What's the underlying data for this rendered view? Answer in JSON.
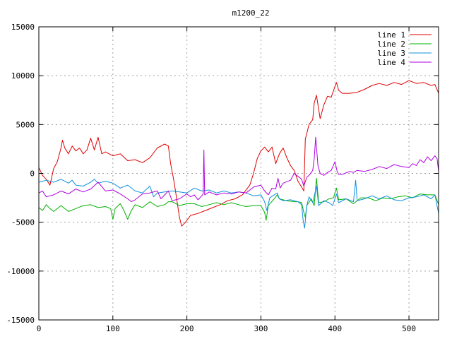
{
  "chart_data": {
    "type": "line",
    "title": "m1200_22",
    "xlabel": "",
    "ylabel": "",
    "xlim": [
      0,
      540
    ],
    "ylim": [
      -15000,
      15000
    ],
    "xticks": [
      0,
      100,
      200,
      300,
      400,
      500
    ],
    "yticks": [
      -15000,
      -10000,
      -5000,
      0,
      5000,
      10000,
      15000
    ],
    "grid": true,
    "legend_position": "top-right",
    "series": [
      {
        "name": "line 1",
        "color": "#e00000",
        "points": [
          [
            0,
            600
          ],
          [
            5,
            -200
          ],
          [
            10,
            -600
          ],
          [
            15,
            -1200
          ],
          [
            20,
            500
          ],
          [
            25,
            1200
          ],
          [
            30,
            2600
          ],
          [
            32,
            3400
          ],
          [
            35,
            2600
          ],
          [
            40,
            2000
          ],
          [
            45,
            2800
          ],
          [
            50,
            2300
          ],
          [
            55,
            2600
          ],
          [
            60,
            2000
          ],
          [
            65,
            2400
          ],
          [
            70,
            3600
          ],
          [
            75,
            2400
          ],
          [
            80,
            3700
          ],
          [
            85,
            2000
          ],
          [
            90,
            2200
          ],
          [
            100,
            1800
          ],
          [
            110,
            2000
          ],
          [
            120,
            1300
          ],
          [
            130,
            1400
          ],
          [
            140,
            1100
          ],
          [
            150,
            1600
          ],
          [
            160,
            2600
          ],
          [
            170,
            3000
          ],
          [
            175,
            2800
          ],
          [
            178,
            1000
          ],
          [
            182,
            -600
          ],
          [
            185,
            -2000
          ],
          [
            190,
            -4500
          ],
          [
            193,
            -5400
          ],
          [
            198,
            -5000
          ],
          [
            205,
            -4300
          ],
          [
            215,
            -4100
          ],
          [
            225,
            -3800
          ],
          [
            235,
            -3500
          ],
          [
            245,
            -3200
          ],
          [
            255,
            -2800
          ],
          [
            265,
            -2600
          ],
          [
            275,
            -2200
          ],
          [
            285,
            -1200
          ],
          [
            290,
            0
          ],
          [
            295,
            1500
          ],
          [
            300,
            2300
          ],
          [
            305,
            2700
          ],
          [
            310,
            2200
          ],
          [
            315,
            2700
          ],
          [
            320,
            1000
          ],
          [
            325,
            2000
          ],
          [
            330,
            2600
          ],
          [
            335,
            1600
          ],
          [
            340,
            800
          ],
          [
            345,
            300
          ],
          [
            350,
            -800
          ],
          [
            355,
            -1400
          ],
          [
            358,
            -1800
          ],
          [
            360,
            3500
          ],
          [
            365,
            5000
          ],
          [
            370,
            5500
          ],
          [
            372,
            7200
          ],
          [
            375,
            8000
          ],
          [
            380,
            5600
          ],
          [
            385,
            7000
          ],
          [
            390,
            7900
          ],
          [
            395,
            7800
          ],
          [
            400,
            8900
          ],
          [
            402,
            9300
          ],
          [
            405,
            8500
          ],
          [
            410,
            8200
          ],
          [
            420,
            8200
          ],
          [
            430,
            8300
          ],
          [
            440,
            8600
          ],
          [
            450,
            9000
          ],
          [
            460,
            9200
          ],
          [
            470,
            9000
          ],
          [
            480,
            9300
          ],
          [
            490,
            9100
          ],
          [
            500,
            9500
          ],
          [
            510,
            9200
          ],
          [
            520,
            9300
          ],
          [
            530,
            9000
          ],
          [
            535,
            9100
          ],
          [
            540,
            8200
          ]
        ]
      },
      {
        "name": "line 2",
        "color": "#00b000",
        "points": [
          [
            0,
            -3500
          ],
          [
            5,
            -3800
          ],
          [
            10,
            -3200
          ],
          [
            15,
            -3600
          ],
          [
            20,
            -3900
          ],
          [
            30,
            -3300
          ],
          [
            40,
            -3900
          ],
          [
            50,
            -3600
          ],
          [
            60,
            -3300
          ],
          [
            70,
            -3200
          ],
          [
            80,
            -3500
          ],
          [
            90,
            -3400
          ],
          [
            97,
            -3600
          ],
          [
            100,
            -4700
          ],
          [
            103,
            -3600
          ],
          [
            110,
            -3100
          ],
          [
            115,
            -3800
          ],
          [
            120,
            -4700
          ],
          [
            125,
            -3800
          ],
          [
            130,
            -3200
          ],
          [
            140,
            -3500
          ],
          [
            150,
            -2900
          ],
          [
            160,
            -3400
          ],
          [
            170,
            -3200
          ],
          [
            175,
            -2900
          ],
          [
            180,
            -2900
          ],
          [
            190,
            -3300
          ],
          [
            200,
            -3100
          ],
          [
            210,
            -3100
          ],
          [
            220,
            -3400
          ],
          [
            230,
            -3200
          ],
          [
            240,
            -3000
          ],
          [
            250,
            -3200
          ],
          [
            260,
            -3000
          ],
          [
            270,
            -3200
          ],
          [
            280,
            -3400
          ],
          [
            290,
            -3300
          ],
          [
            300,
            -3300
          ],
          [
            305,
            -4000
          ],
          [
            307,
            -4800
          ],
          [
            310,
            -3300
          ],
          [
            318,
            -2600
          ],
          [
            322,
            -2200
          ],
          [
            325,
            -2600
          ],
          [
            335,
            -2800
          ],
          [
            345,
            -2900
          ],
          [
            350,
            -2900
          ],
          [
            355,
            -3000
          ],
          [
            358,
            -4000
          ],
          [
            360,
            -4500
          ],
          [
            362,
            -3300
          ],
          [
            368,
            -2600
          ],
          [
            372,
            -3300
          ],
          [
            375,
            -500
          ],
          [
            378,
            -3000
          ],
          [
            385,
            -2900
          ],
          [
            392,
            -2600
          ],
          [
            398,
            -2500
          ],
          [
            402,
            -1500
          ],
          [
            405,
            -2700
          ],
          [
            415,
            -2600
          ],
          [
            425,
            -3100
          ],
          [
            435,
            -2500
          ],
          [
            445,
            -2500
          ],
          [
            455,
            -2800
          ],
          [
            465,
            -2500
          ],
          [
            475,
            -2600
          ],
          [
            485,
            -2400
          ],
          [
            495,
            -2300
          ],
          [
            505,
            -2500
          ],
          [
            515,
            -2100
          ],
          [
            525,
            -2200
          ],
          [
            535,
            -2200
          ],
          [
            540,
            -3200
          ]
        ]
      },
      {
        "name": "line 3",
        "color": "#1090e0",
        "points": [
          [
            0,
            -900
          ],
          [
            10,
            -700
          ],
          [
            20,
            -900
          ],
          [
            30,
            -600
          ],
          [
            40,
            -1000
          ],
          [
            45,
            -700
          ],
          [
            50,
            -1200
          ],
          [
            60,
            -1300
          ],
          [
            70,
            -900
          ],
          [
            75,
            -600
          ],
          [
            80,
            -1000
          ],
          [
            90,
            -800
          ],
          [
            100,
            -1000
          ],
          [
            110,
            -1500
          ],
          [
            120,
            -1200
          ],
          [
            130,
            -1800
          ],
          [
            140,
            -2000
          ],
          [
            150,
            -1300
          ],
          [
            155,
            -2400
          ],
          [
            160,
            -2000
          ],
          [
            170,
            -1900
          ],
          [
            180,
            -1800
          ],
          [
            190,
            -1900
          ],
          [
            200,
            -2000
          ],
          [
            210,
            -1500
          ],
          [
            220,
            -1800
          ],
          [
            230,
            -1700
          ],
          [
            240,
            -2000
          ],
          [
            250,
            -1800
          ],
          [
            260,
            -2000
          ],
          [
            270,
            -1900
          ],
          [
            280,
            -2000
          ],
          [
            290,
            -2300
          ],
          [
            300,
            -2200
          ],
          [
            305,
            -2900
          ],
          [
            308,
            -3800
          ],
          [
            312,
            -2500
          ],
          [
            318,
            -2200
          ],
          [
            322,
            -2000
          ],
          [
            325,
            -2600
          ],
          [
            330,
            -2800
          ],
          [
            340,
            -2700
          ],
          [
            350,
            -2900
          ],
          [
            355,
            -3200
          ],
          [
            357,
            -4800
          ],
          [
            359,
            -5600
          ],
          [
            362,
            -3300
          ],
          [
            365,
            -2400
          ],
          [
            370,
            -3000
          ],
          [
            375,
            -1300
          ],
          [
            378,
            -3300
          ],
          [
            385,
            -2800
          ],
          [
            392,
            -3000
          ],
          [
            397,
            -3300
          ],
          [
            402,
            -2100
          ],
          [
            405,
            -3000
          ],
          [
            415,
            -2600
          ],
          [
            425,
            -2900
          ],
          [
            428,
            -700
          ],
          [
            430,
            -2800
          ],
          [
            440,
            -2600
          ],
          [
            450,
            -2300
          ],
          [
            460,
            -2600
          ],
          [
            470,
            -2300
          ],
          [
            480,
            -2700
          ],
          [
            490,
            -2800
          ],
          [
            500,
            -2500
          ],
          [
            510,
            -2400
          ],
          [
            520,
            -2200
          ],
          [
            530,
            -2600
          ],
          [
            535,
            -2200
          ],
          [
            540,
            -4100
          ]
        ]
      },
      {
        "name": "line 4",
        "color": "#b000e0",
        "points": [
          [
            0,
            -2000
          ],
          [
            5,
            -1800
          ],
          [
            10,
            -2400
          ],
          [
            20,
            -2200
          ],
          [
            30,
            -1800
          ],
          [
            40,
            -2100
          ],
          [
            50,
            -1600
          ],
          [
            60,
            -1900
          ],
          [
            70,
            -1600
          ],
          [
            80,
            -900
          ],
          [
            90,
            -1800
          ],
          [
            100,
            -1700
          ],
          [
            110,
            -2100
          ],
          [
            120,
            -2600
          ],
          [
            125,
            -2900
          ],
          [
            130,
            -2700
          ],
          [
            140,
            -2100
          ],
          [
            150,
            -2000
          ],
          [
            160,
            -1800
          ],
          [
            165,
            -2600
          ],
          [
            170,
            -2200
          ],
          [
            175,
            -1800
          ],
          [
            180,
            -2800
          ],
          [
            190,
            -2600
          ],
          [
            200,
            -2100
          ],
          [
            205,
            -2400
          ],
          [
            210,
            -2200
          ],
          [
            215,
            -2700
          ],
          [
            220,
            -2300
          ],
          [
            222,
            -2100
          ],
          [
            223,
            2400
          ],
          [
            224,
            -2200
          ],
          [
            230,
            -1900
          ],
          [
            240,
            -2200
          ],
          [
            250,
            -2000
          ],
          [
            260,
            -2100
          ],
          [
            270,
            -1900
          ],
          [
            280,
            -2000
          ],
          [
            290,
            -1400
          ],
          [
            300,
            -1200
          ],
          [
            305,
            -1800
          ],
          [
            310,
            -2200
          ],
          [
            315,
            -1500
          ],
          [
            320,
            -1600
          ],
          [
            323,
            -500
          ],
          [
            326,
            -1500
          ],
          [
            330,
            -1000
          ],
          [
            340,
            -700
          ],
          [
            345,
            0
          ],
          [
            350,
            -300
          ],
          [
            355,
            -600
          ],
          [
            358,
            -1300
          ],
          [
            362,
            -400
          ],
          [
            365,
            -200
          ],
          [
            370,
            300
          ],
          [
            372,
            1500
          ],
          [
            374,
            3700
          ],
          [
            377,
            800
          ],
          [
            380,
            0
          ],
          [
            385,
            -200
          ],
          [
            390,
            100
          ],
          [
            395,
            300
          ],
          [
            400,
            1200
          ],
          [
            403,
            200
          ],
          [
            405,
            -100
          ],
          [
            410,
            -100
          ],
          [
            420,
            200
          ],
          [
            425,
            100
          ],
          [
            430,
            300
          ],
          [
            440,
            200
          ],
          [
            450,
            400
          ],
          [
            460,
            700
          ],
          [
            470,
            500
          ],
          [
            480,
            900
          ],
          [
            490,
            700
          ],
          [
            500,
            600
          ],
          [
            505,
            1000
          ],
          [
            510,
            800
          ],
          [
            515,
            1400
          ],
          [
            520,
            1100
          ],
          [
            525,
            1700
          ],
          [
            530,
            1300
          ],
          [
            535,
            1800
          ],
          [
            538,
            1500
          ],
          [
            540,
            200
          ]
        ]
      }
    ]
  }
}
